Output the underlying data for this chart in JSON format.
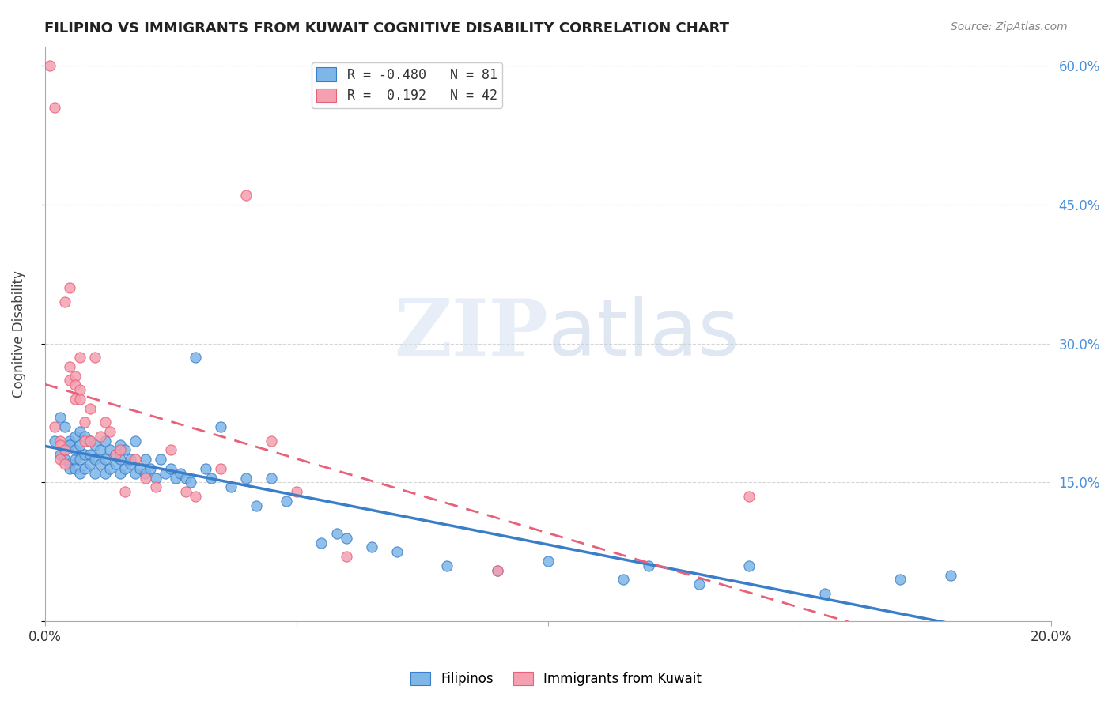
{
  "title": "FILIPINO VS IMMIGRANTS FROM KUWAIT COGNITIVE DISABILITY CORRELATION CHART",
  "source": "Source: ZipAtlas.com",
  "xlabel": "",
  "ylabel": "Cognitive Disability",
  "watermark": "ZIPatlas",
  "xlim": [
    0.0,
    0.2
  ],
  "ylim": [
    0.0,
    0.62
  ],
  "xticks": [
    0.0,
    0.05,
    0.1,
    0.15,
    0.2
  ],
  "yticks": [
    0.0,
    0.15,
    0.3,
    0.45,
    0.6
  ],
  "xtick_labels": [
    "0.0%",
    "",
    "",
    "",
    "20.0%"
  ],
  "ytick_labels": [
    "",
    "15.0%",
    "30.0%",
    "45.0%",
    "60.0%"
  ],
  "blue_R": -0.48,
  "blue_N": 81,
  "pink_R": 0.192,
  "pink_N": 42,
  "blue_color": "#7EB6E8",
  "pink_color": "#F4A0B0",
  "blue_line_color": "#3A7DC9",
  "pink_line_color": "#E8607A",
  "right_tick_color": "#4A90D9",
  "grid_color": "#CCCCCC",
  "background_color": "#FFFFFF",
  "blue_scatter_x": [
    0.002,
    0.003,
    0.003,
    0.004,
    0.004,
    0.004,
    0.005,
    0.005,
    0.005,
    0.005,
    0.006,
    0.006,
    0.006,
    0.006,
    0.007,
    0.007,
    0.007,
    0.007,
    0.008,
    0.008,
    0.008,
    0.009,
    0.009,
    0.009,
    0.01,
    0.01,
    0.01,
    0.011,
    0.011,
    0.012,
    0.012,
    0.012,
    0.013,
    0.013,
    0.014,
    0.014,
    0.015,
    0.015,
    0.015,
    0.016,
    0.016,
    0.017,
    0.017,
    0.018,
    0.018,
    0.019,
    0.02,
    0.02,
    0.021,
    0.022,
    0.023,
    0.024,
    0.025,
    0.026,
    0.027,
    0.028,
    0.029,
    0.03,
    0.032,
    0.033,
    0.035,
    0.037,
    0.04,
    0.042,
    0.045,
    0.048,
    0.055,
    0.058,
    0.06,
    0.065,
    0.07,
    0.08,
    0.09,
    0.1,
    0.115,
    0.12,
    0.13,
    0.14,
    0.155,
    0.17,
    0.18
  ],
  "blue_scatter_y": [
    0.195,
    0.18,
    0.22,
    0.175,
    0.185,
    0.21,
    0.17,
    0.195,
    0.165,
    0.19,
    0.175,
    0.185,
    0.2,
    0.165,
    0.175,
    0.19,
    0.16,
    0.205,
    0.18,
    0.165,
    0.2,
    0.17,
    0.18,
    0.195,
    0.175,
    0.19,
    0.16,
    0.185,
    0.17,
    0.175,
    0.16,
    0.195,
    0.165,
    0.185,
    0.17,
    0.18,
    0.175,
    0.16,
    0.19,
    0.165,
    0.185,
    0.17,
    0.175,
    0.16,
    0.195,
    0.165,
    0.175,
    0.16,
    0.165,
    0.155,
    0.175,
    0.16,
    0.165,
    0.155,
    0.16,
    0.155,
    0.15,
    0.285,
    0.165,
    0.155,
    0.21,
    0.145,
    0.155,
    0.125,
    0.155,
    0.13,
    0.085,
    0.095,
    0.09,
    0.08,
    0.075,
    0.06,
    0.055,
    0.065,
    0.045,
    0.06,
    0.04,
    0.06,
    0.03,
    0.045,
    0.05
  ],
  "pink_scatter_x": [
    0.001,
    0.002,
    0.002,
    0.003,
    0.003,
    0.003,
    0.004,
    0.004,
    0.004,
    0.005,
    0.005,
    0.005,
    0.006,
    0.006,
    0.006,
    0.007,
    0.007,
    0.007,
    0.008,
    0.008,
    0.009,
    0.009,
    0.01,
    0.011,
    0.012,
    0.013,
    0.014,
    0.015,
    0.016,
    0.018,
    0.02,
    0.022,
    0.025,
    0.028,
    0.03,
    0.035,
    0.04,
    0.045,
    0.05,
    0.06,
    0.09,
    0.14
  ],
  "pink_scatter_y": [
    0.6,
    0.555,
    0.21,
    0.195,
    0.175,
    0.19,
    0.17,
    0.345,
    0.185,
    0.36,
    0.26,
    0.275,
    0.24,
    0.265,
    0.255,
    0.285,
    0.24,
    0.25,
    0.215,
    0.195,
    0.23,
    0.195,
    0.285,
    0.2,
    0.215,
    0.205,
    0.18,
    0.185,
    0.14,
    0.175,
    0.155,
    0.145,
    0.185,
    0.14,
    0.135,
    0.165,
    0.46,
    0.195,
    0.14,
    0.07,
    0.055,
    0.135
  ]
}
